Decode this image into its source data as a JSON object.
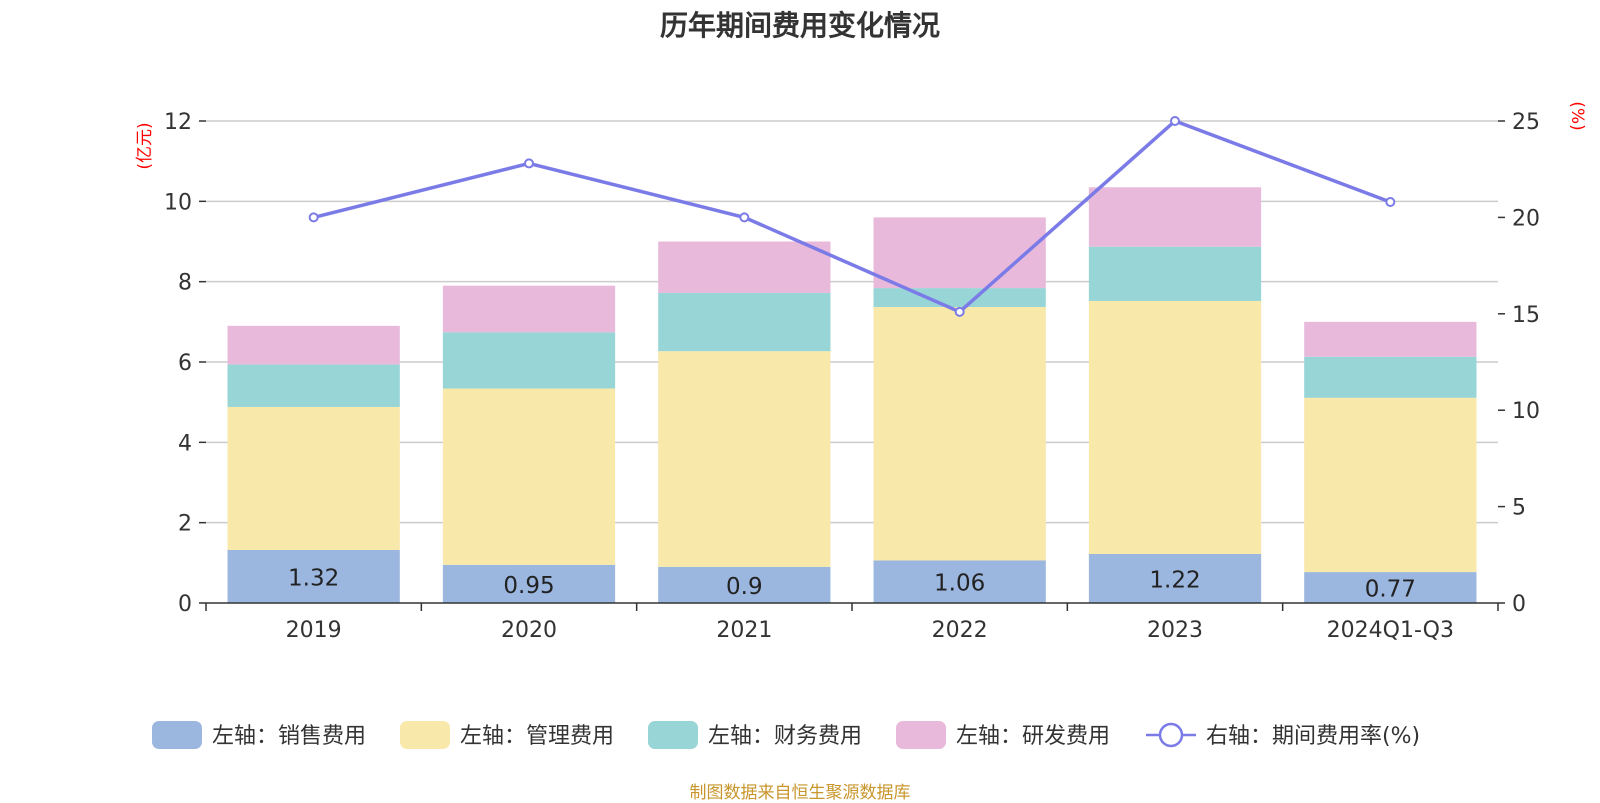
{
  "chart_data": {
    "type": "bar",
    "title": "历年期间费用变化情况",
    "categories": [
      "2019",
      "2020",
      "2021",
      "2022",
      "2023",
      "2024Q1-Q3"
    ],
    "left_axis": {
      "unit_label": "(亿元)",
      "ylim": [
        0,
        12
      ],
      "ticks": [
        "0",
        "2",
        "4",
        "6",
        "8",
        "10",
        "12"
      ]
    },
    "right_axis": {
      "unit_label": "(%)",
      "ylim": [
        0,
        25
      ],
      "ticks": [
        "0",
        "5",
        "10",
        "15",
        "20",
        "25"
      ]
    },
    "grid": true,
    "stacked": true,
    "series": [
      {
        "name": "左轴：销售费用",
        "axis": "left",
        "type": "bar",
        "color": "#9bb7e0",
        "values": [
          1.32,
          0.95,
          0.9,
          1.06,
          1.22,
          0.77
        ],
        "labels": [
          "1.32",
          "0.95",
          "0.9",
          "1.06",
          "1.22",
          "0.77"
        ]
      },
      {
        "name": "左轴：管理费用",
        "axis": "left",
        "type": "bar",
        "color": "#f8e8a9",
        "values": [
          3.56,
          4.39,
          5.37,
          6.31,
          6.3,
          4.34
        ]
      },
      {
        "name": "左轴：财务费用",
        "axis": "left",
        "type": "bar",
        "color": "#98d5d6",
        "values": [
          1.06,
          1.4,
          1.45,
          0.47,
          1.35,
          1.02
        ]
      },
      {
        "name": "左轴：研发费用",
        "axis": "left",
        "type": "bar",
        "color": "#e8b9da",
        "values": [
          0.96,
          1.16,
          1.28,
          1.76,
          1.48,
          0.87
        ]
      },
      {
        "name": "右轴：期间费用率(%)",
        "axis": "right",
        "type": "line",
        "color": "#7b7be8",
        "values": [
          20.0,
          22.8,
          20.0,
          15.1,
          25.0,
          20.8
        ]
      }
    ],
    "legend_position": "bottom"
  },
  "source_note": "制图数据来自恒生聚源数据库"
}
